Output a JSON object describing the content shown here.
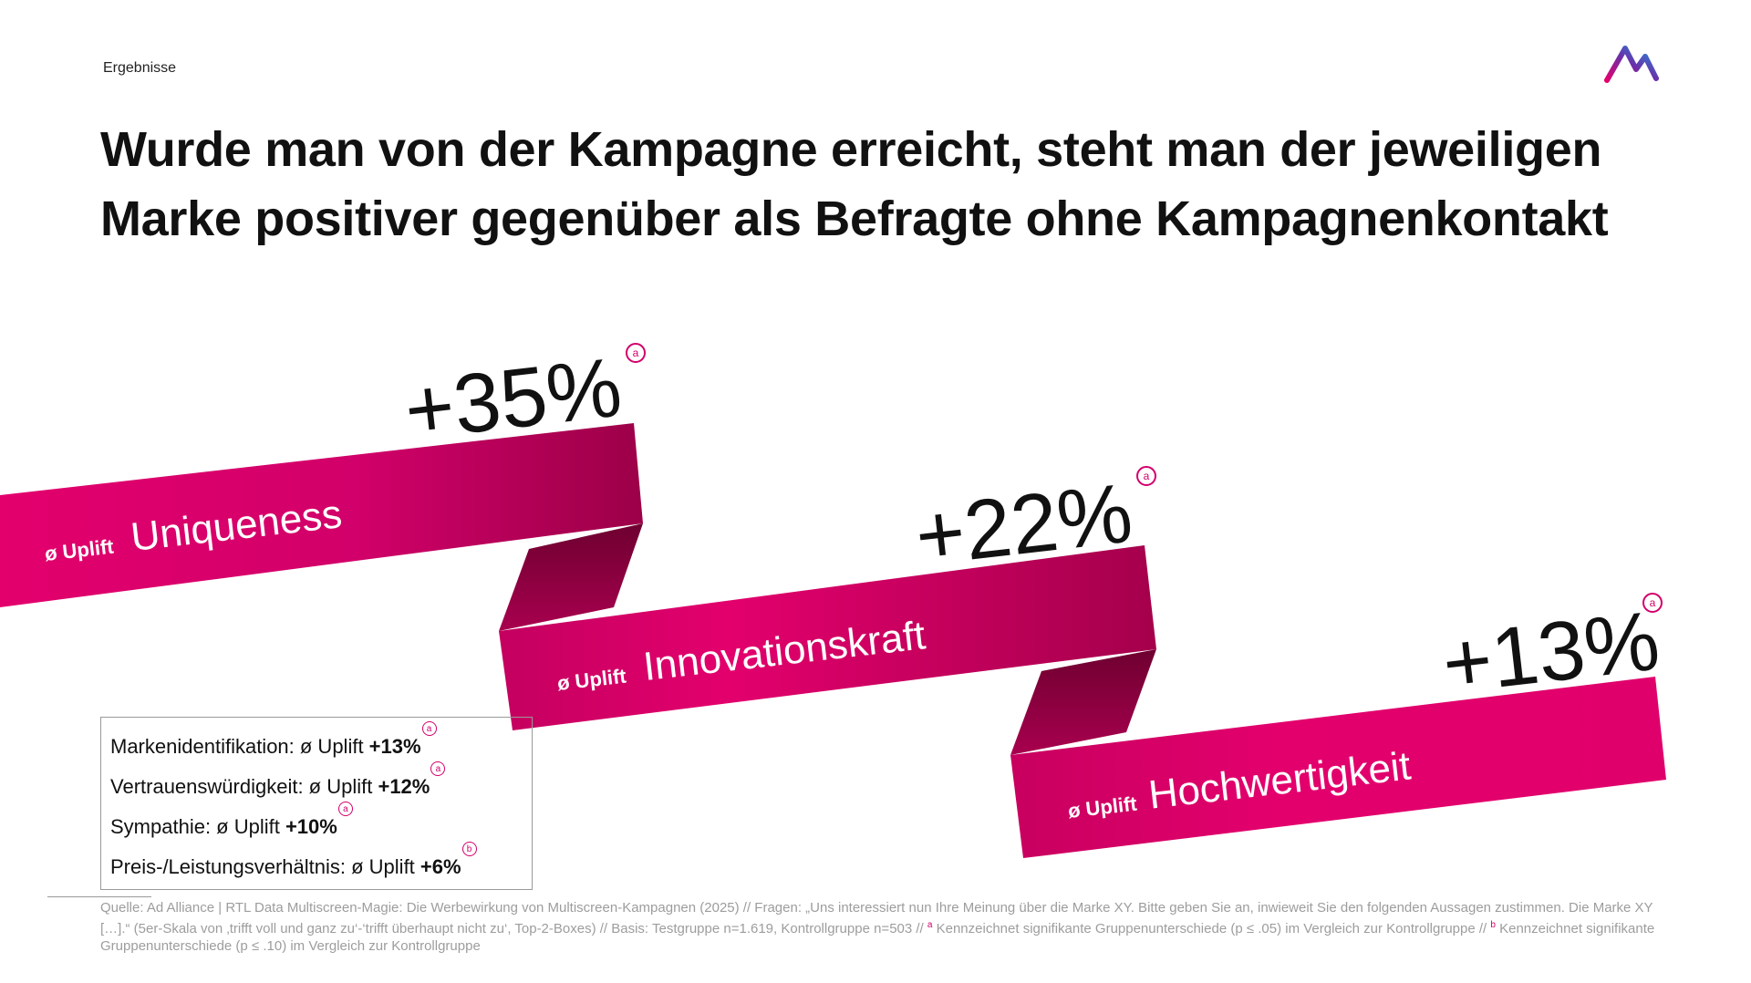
{
  "section_label": "Ergebnisse",
  "logo": {
    "icon": "ad-alliance-logo-icon"
  },
  "headline": {
    "line1": "Wurde man von der Kampagne erreicht, steht man der jeweiligen",
    "line2": "Marke positiver gegenüber als Befragte ohne Kampagnenkontakt"
  },
  "ribbons": [
    {
      "prefix": "ø Uplift",
      "name": "Uniqueness",
      "value": "+35%",
      "marker": "a"
    },
    {
      "prefix": "ø Uplift",
      "name": "Innovationskraft",
      "value": "+22%",
      "marker": "a"
    },
    {
      "prefix": "ø Uplift",
      "name": "Hochwertigkeit",
      "value": "+13%",
      "marker": "a"
    }
  ],
  "details": [
    {
      "label": "Markenidentifikation: ø Uplift ",
      "value": "+13%",
      "marker": "a"
    },
    {
      "label": "Vertrauenswürdigkeit: ø Uplift ",
      "value": "+12%",
      "marker": "a"
    },
    {
      "label": "Sympathie: ø Uplift ",
      "value": "+10%",
      "marker": "a"
    },
    {
      "label": "Preis-/Leistungsverhältnis: ø Uplift  ",
      "value": "+6%",
      "marker": "b"
    }
  ],
  "footnote": {
    "part1": "Quelle: Ad Alliance | RTL Data Multiscreen-Magie: Die Werbewirkung von Multiscreen-Kampagnen (2025) // Fragen: „Uns interessiert nun Ihre Meinung über die Marke XY. Bitte geben Sie an, inwieweit Sie den folgenden Aussagen zustimmen. Die Marke XY […].“ (5er-Skala von ‚trifft voll und ganz zu‘-‘trifft überhaupt nicht zu‘, Top-2-Boxes) // Basis: Testgruppe n=1.619, Kontrollgruppe n=503 // ",
    "sup_a": "a",
    "part2": " Kennzeichnet signifikante Gruppenunterschiede (p ≤ .05) im Vergleich zur Kontrollgruppe // ",
    "sup_b": "b",
    "part3": " Kennzeichnet signifikante Gruppenunterschiede (p ≤ .10) im Vergleich zur Kontrollgruppe"
  },
  "colors": {
    "ribbon_light": "#e3006d",
    "ribbon_dark": "#9c0048",
    "fold_dark": "#7a0036",
    "marker": "#d3006b"
  }
}
